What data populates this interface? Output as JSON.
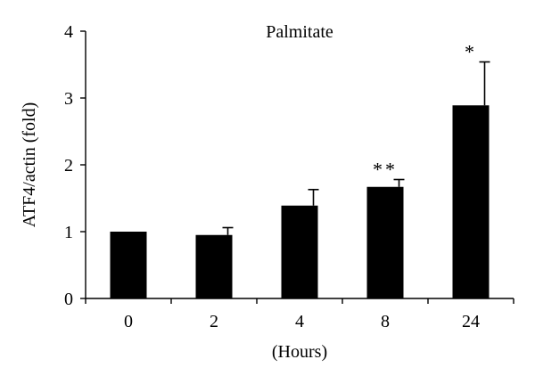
{
  "chart_data": {
    "type": "bar",
    "title": "Palmitate",
    "xlabel": "(Hours)",
    "ylabel": "ATF4/actin (fold)",
    "categories": [
      "0",
      "2",
      "4",
      "8",
      "24"
    ],
    "values": [
      1.0,
      0.95,
      1.39,
      1.67,
      2.89
    ],
    "error_upper": [
      0.0,
      0.11,
      0.24,
      0.11,
      0.65
    ],
    "annotations": [
      "",
      "",
      "",
      "**",
      "*"
    ],
    "ylim": [
      0,
      4
    ],
    "yticks": [
      "0",
      "1",
      "2",
      "3",
      "4"
    ],
    "grid": false,
    "legend": "none",
    "colors": {
      "bar": "#000000",
      "axis": "#000000",
      "background": "#ffffff"
    }
  }
}
